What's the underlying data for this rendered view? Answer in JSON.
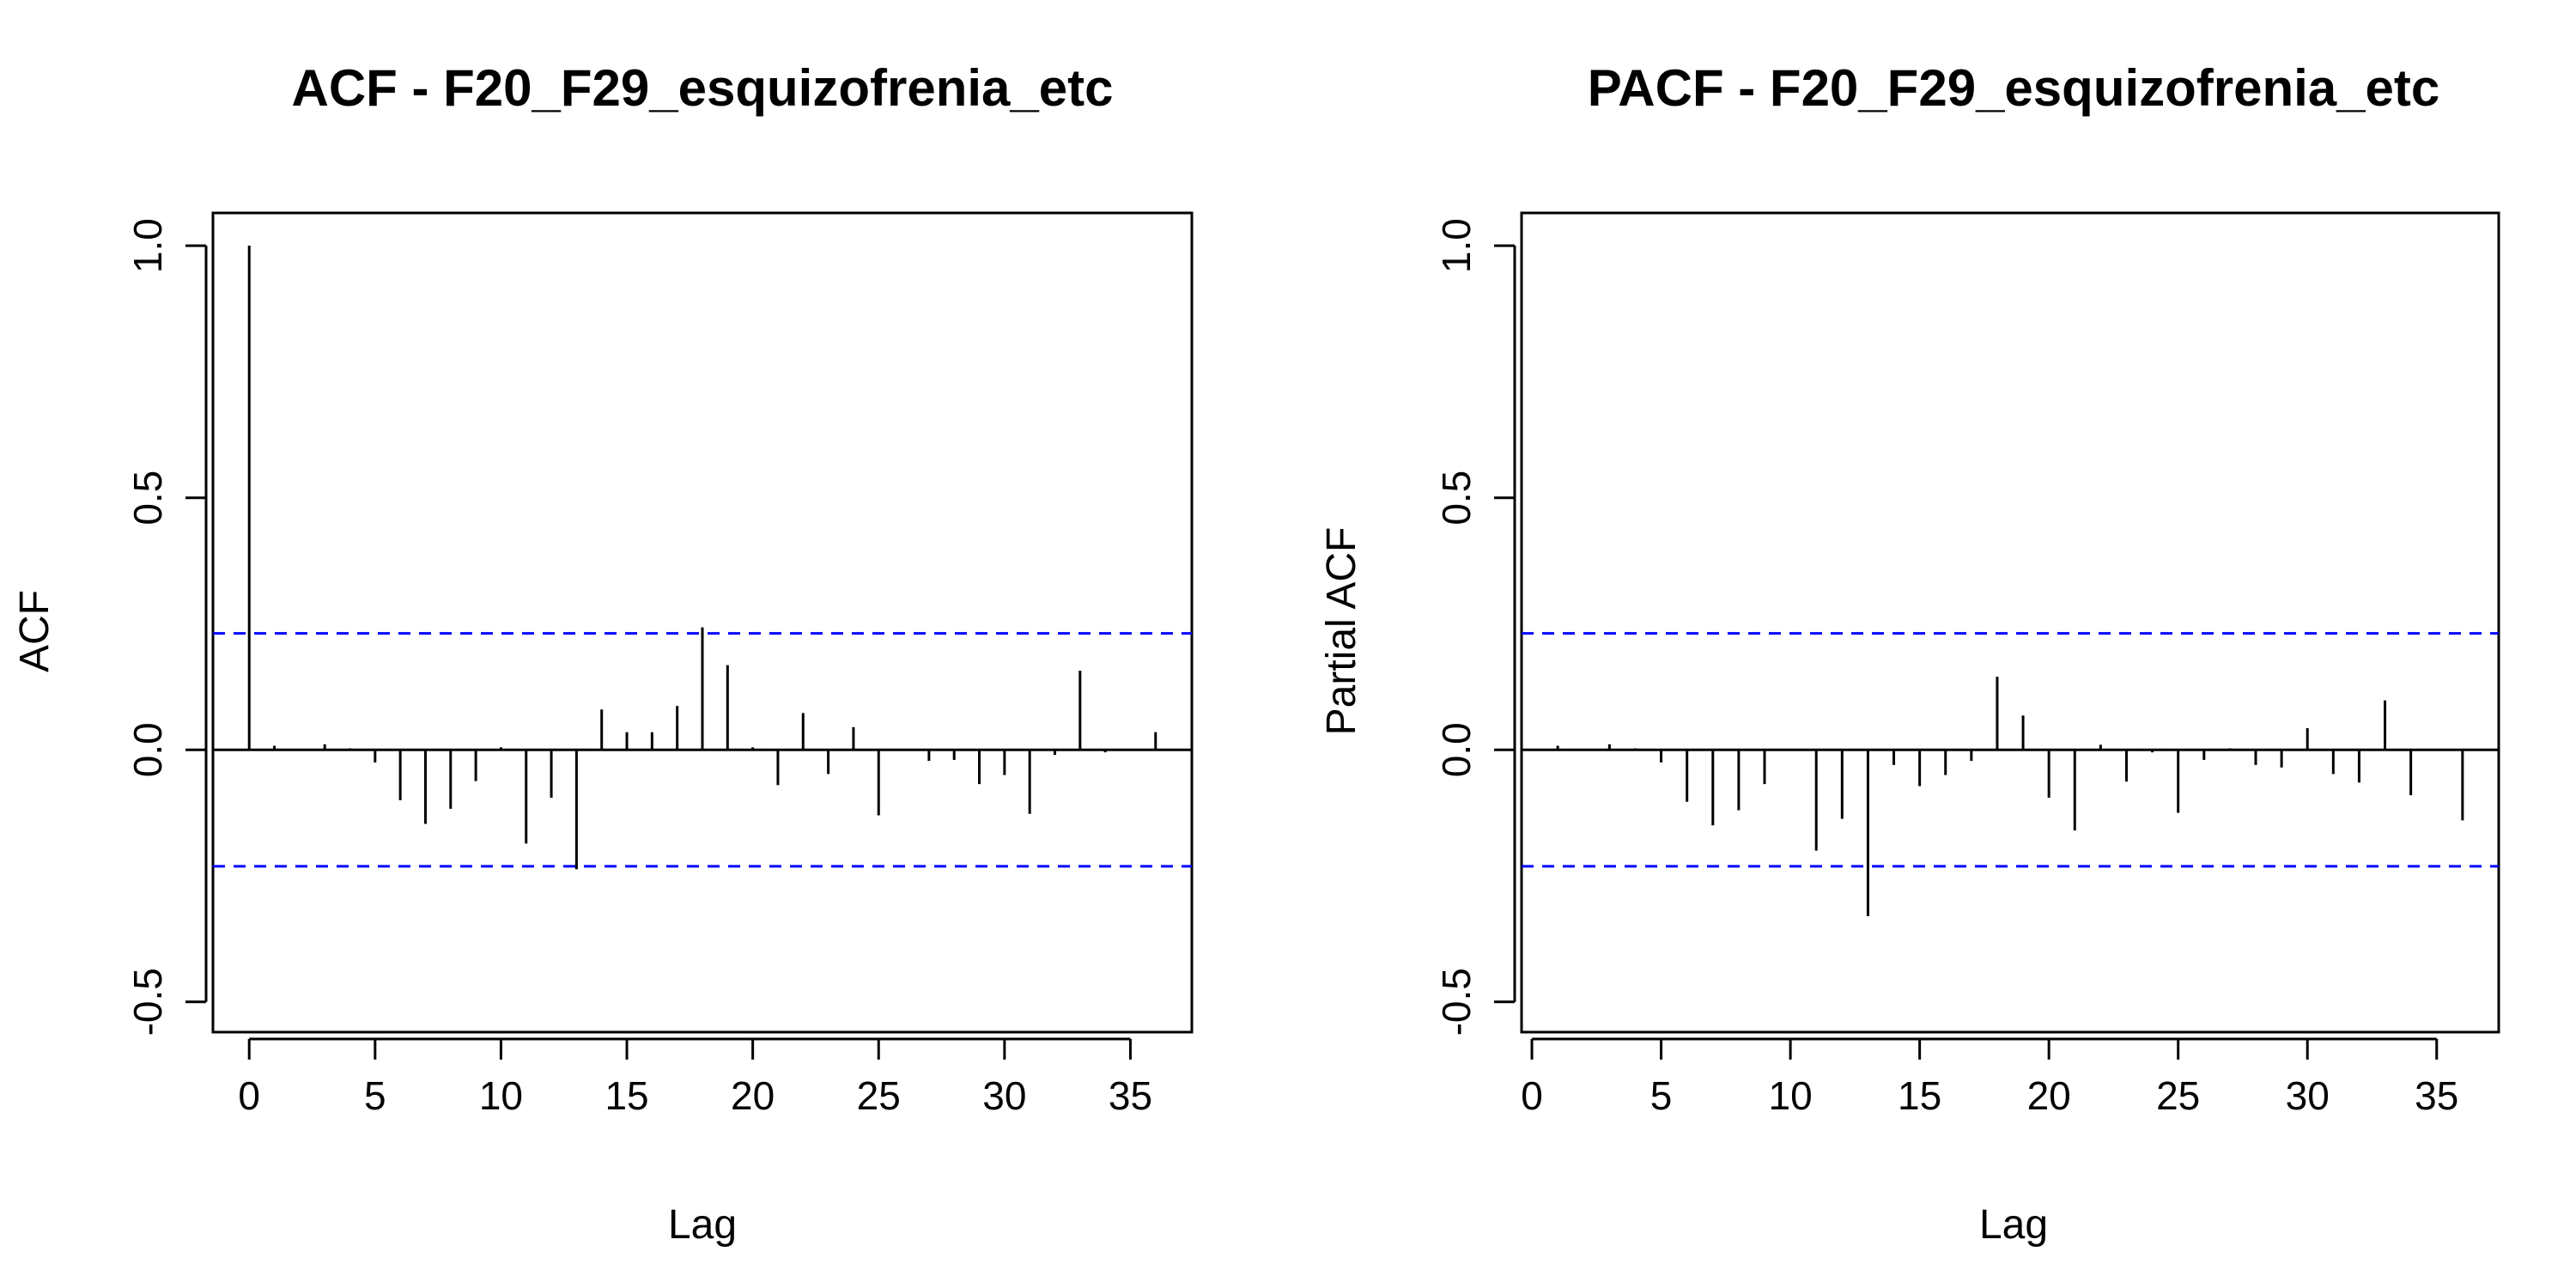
{
  "chart_data": [
    {
      "type": "bar",
      "title": "ACF - F20_F29_esquizofrenia_etc",
      "xlabel": "Lag",
      "ylabel": "ACF",
      "x_ticks": [
        "0",
        "5",
        "10",
        "15",
        "20",
        "25",
        "30",
        "35"
      ],
      "y_ticks": [
        "-0.5",
        "0.0",
        "0.5",
        "1.0"
      ],
      "xlim": [
        -1.44,
        37.44
      ],
      "ylim": [
        -0.56,
        1.065
      ],
      "confidence_bound": 0.231,
      "colors": {
        "bars": "#000000",
        "bounds": "#0000ff"
      },
      "grid": false,
      "lags": [
        0,
        1,
        2,
        3,
        4,
        5,
        6,
        7,
        8,
        9,
        10,
        11,
        12,
        13,
        14,
        15,
        16,
        17,
        18,
        19,
        20,
        21,
        22,
        23,
        24,
        25,
        26,
        27,
        28,
        29,
        30,
        31,
        32,
        33,
        34,
        35,
        36
      ],
      "values": [
        1.0,
        0.008,
        0.0,
        0.011,
        0.003,
        -0.025,
        -0.1,
        -0.147,
        -0.117,
        -0.062,
        0.005,
        -0.186,
        -0.095,
        -0.237,
        0.08,
        0.035,
        0.035,
        0.087,
        0.243,
        0.168,
        0.005,
        -0.07,
        0.073,
        -0.048,
        0.045,
        -0.13,
        0.002,
        -0.022,
        -0.02,
        -0.068,
        -0.05,
        -0.127,
        -0.01,
        0.157,
        -0.005,
        0.0,
        0.035
      ]
    },
    {
      "type": "bar",
      "title": "PACF - F20_F29_esquizofrenia_etc",
      "xlabel": "Lag",
      "ylabel": "Partial ACF",
      "x_ticks": [
        "0",
        "5",
        "10",
        "15",
        "20",
        "25",
        "30",
        "35"
      ],
      "y_ticks": [
        "-0.5",
        "0.0",
        "0.5",
        "1.0"
      ],
      "xlim": [
        -0.4,
        37.4
      ],
      "ylim": [
        -0.56,
        1.065
      ],
      "confidence_bound": 0.231,
      "colors": {
        "bars": "#000000",
        "bounds": "#0000ff"
      },
      "grid": false,
      "lags": [
        1,
        2,
        3,
        4,
        5,
        6,
        7,
        8,
        9,
        10,
        11,
        12,
        13,
        14,
        15,
        16,
        17,
        18,
        19,
        20,
        21,
        22,
        23,
        24,
        25,
        26,
        27,
        28,
        29,
        30,
        31,
        32,
        33,
        34,
        35,
        36
      ],
      "values": [
        0.008,
        0.0,
        0.011,
        0.003,
        -0.025,
        -0.103,
        -0.15,
        -0.12,
        -0.068,
        0.002,
        -0.2,
        -0.137,
        -0.33,
        -0.03,
        -0.072,
        -0.05,
        -0.022,
        0.145,
        0.068,
        -0.095,
        -0.16,
        0.01,
        -0.063,
        -0.005,
        -0.125,
        -0.02,
        0.003,
        -0.03,
        -0.035,
        0.043,
        -0.048,
        -0.065,
        0.098,
        -0.09,
        0.002,
        -0.14
      ]
    }
  ]
}
